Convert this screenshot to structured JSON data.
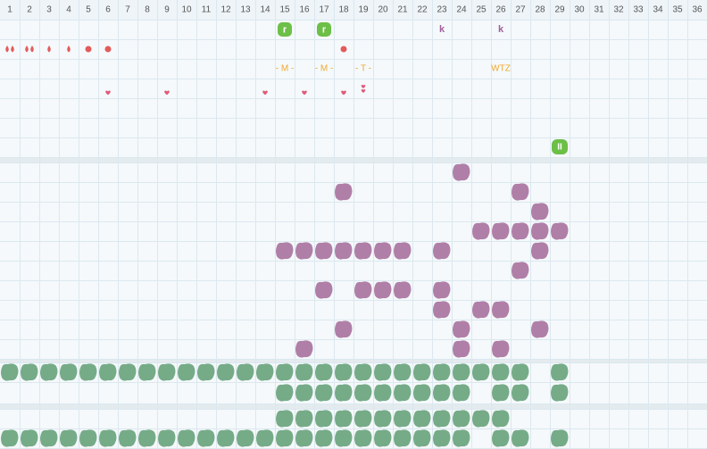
{
  "header": {
    "columns": [
      1,
      2,
      3,
      4,
      5,
      6,
      7,
      8,
      9,
      10,
      11,
      12,
      13,
      14,
      15,
      16,
      17,
      18,
      19,
      20,
      21,
      22,
      23,
      24,
      25,
      26,
      27,
      28,
      29,
      30,
      31,
      32,
      33,
      34,
      35,
      36
    ]
  },
  "top_row": {
    "labels": [
      "r",
      "r",
      "k",
      "k"
    ]
  },
  "phase_row": {
    "labels": [
      "- M -",
      "- M -",
      "- T -",
      "WTZ"
    ]
  },
  "badge": "II"
}
